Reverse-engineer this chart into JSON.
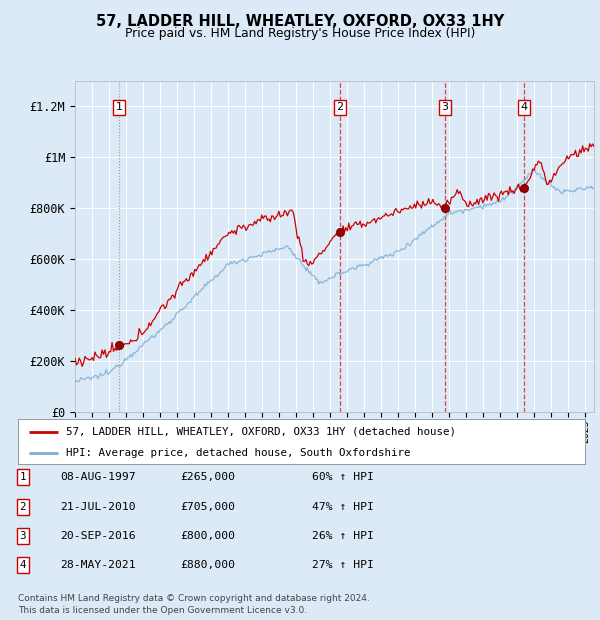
{
  "title": "57, LADDER HILL, WHEATLEY, OXFORD, OX33 1HY",
  "subtitle": "Price paid vs. HM Land Registry's House Price Index (HPI)",
  "background_color": "#dce9f7",
  "plot_bg_color": "#dce9f7",
  "ylim": [
    0,
    1300000
  ],
  "yticks": [
    0,
    200000,
    400000,
    600000,
    800000,
    1000000,
    1200000
  ],
  "ytick_labels": [
    "£0",
    "£200K",
    "£400K",
    "£600K",
    "£800K",
    "£1M",
    "£1.2M"
  ],
  "sale_dates": [
    1997.6,
    2010.55,
    2016.72,
    2021.41
  ],
  "sale_prices": [
    265000,
    705000,
    800000,
    880000
  ],
  "sale_labels": [
    "1",
    "2",
    "3",
    "4"
  ],
  "legend_line1": "57, LADDER HILL, WHEATLEY, OXFORD, OX33 1HY (detached house)",
  "legend_line2": "HPI: Average price, detached house, South Oxfordshire",
  "table_rows": [
    [
      "1",
      "08-AUG-1997",
      "£265,000",
      "60% ↑ HPI"
    ],
    [
      "2",
      "21-JUL-2010",
      "£705,000",
      "47% ↑ HPI"
    ],
    [
      "3",
      "20-SEP-2016",
      "£800,000",
      "26% ↑ HPI"
    ],
    [
      "4",
      "28-MAY-2021",
      "£880,000",
      "27% ↑ HPI"
    ]
  ],
  "footer": "Contains HM Land Registry data © Crown copyright and database right 2024.\nThis data is licensed under the Open Government Licence v3.0.",
  "line_color_red": "#cc0000",
  "line_color_blue": "#7aadd4",
  "dot_color_red": "#990000",
  "xmin": 1995.0,
  "xmax": 2025.5
}
